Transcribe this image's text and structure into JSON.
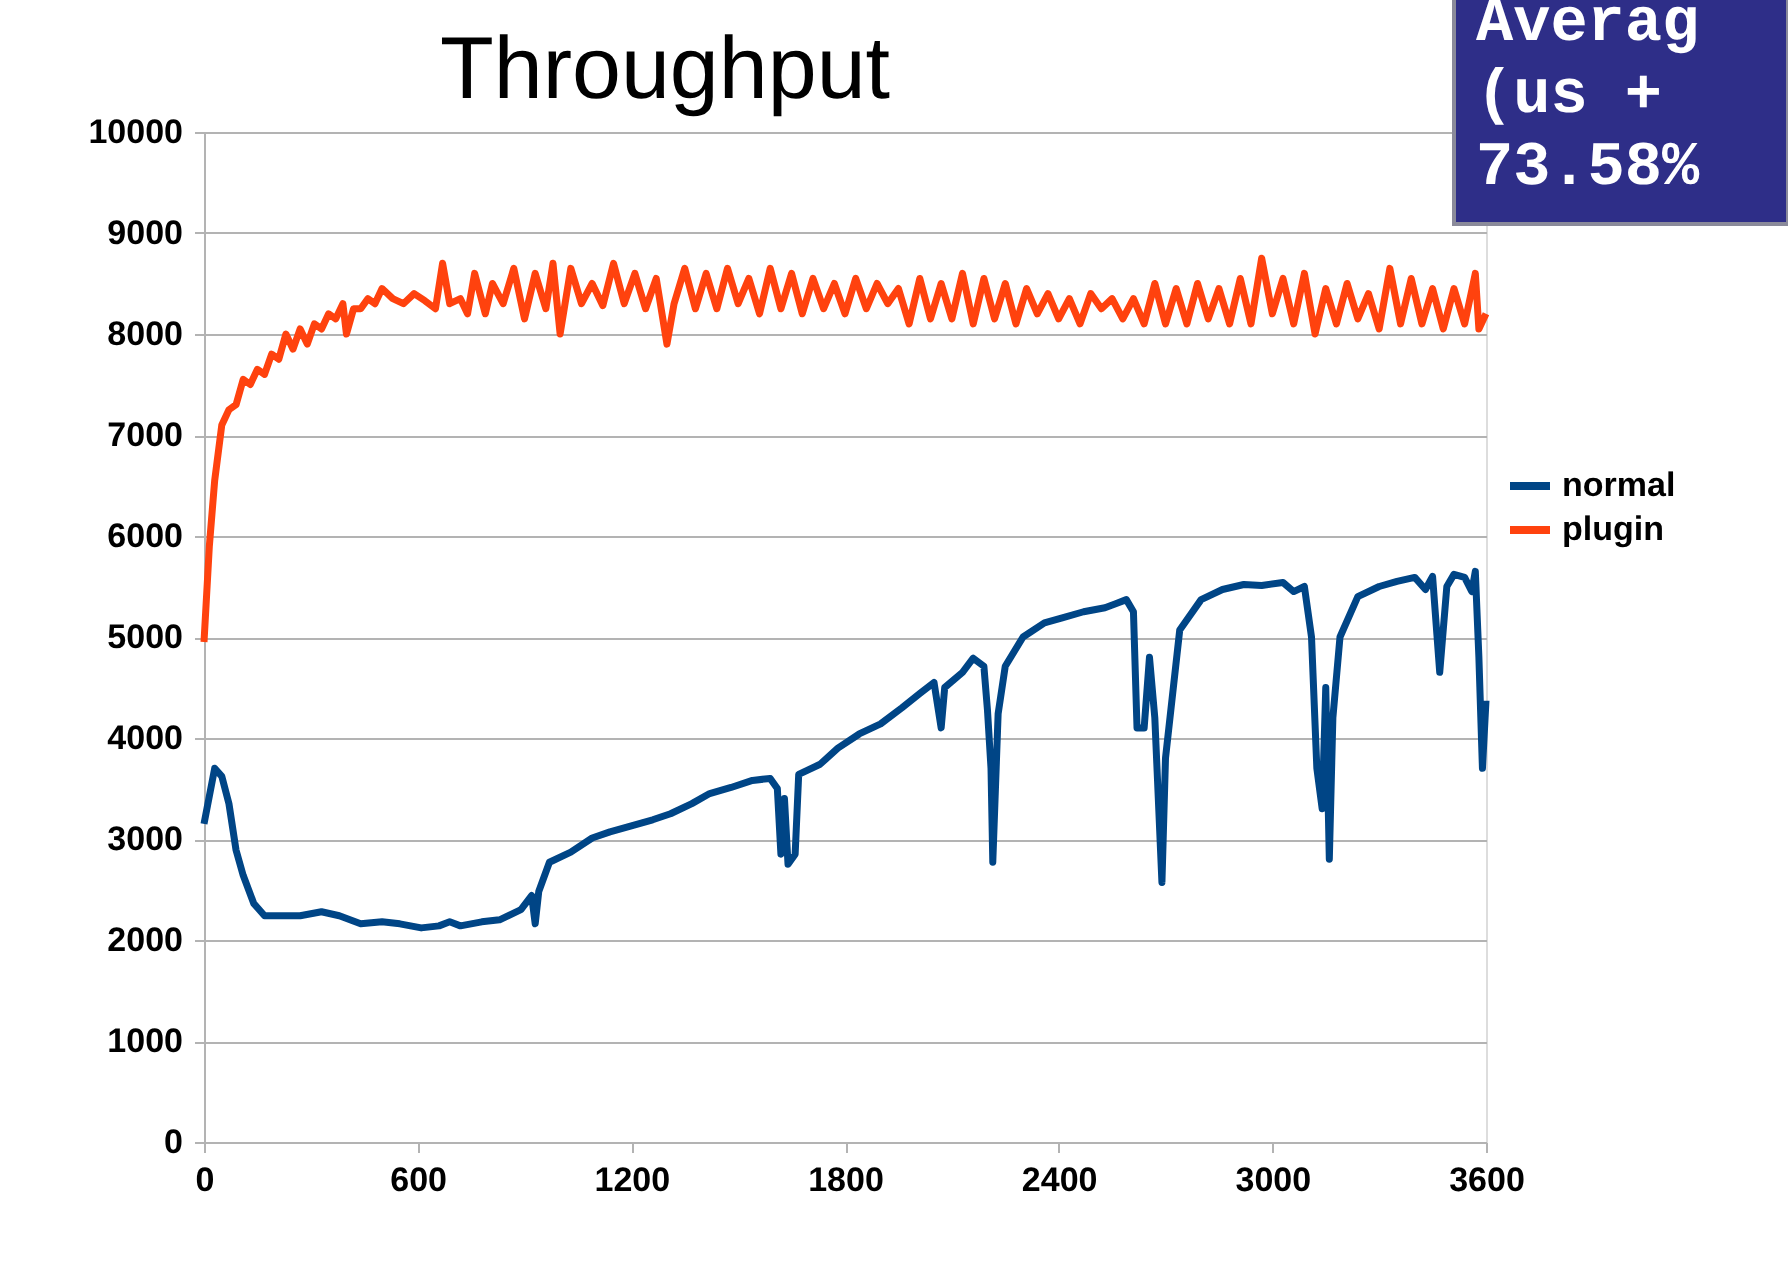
{
  "chart_data": {
    "type": "line",
    "title": "Throughput",
    "xlim": [
      0,
      3600
    ],
    "ylim": [
      0,
      10000
    ],
    "xticks": [
      0,
      600,
      1200,
      1800,
      2400,
      3000,
      3600
    ],
    "yticks": [
      0,
      1000,
      2000,
      3000,
      4000,
      5000,
      6000,
      7000,
      8000,
      9000,
      10000
    ],
    "grid": "y",
    "legend": "right",
    "annotations": [
      "Averag\n(us +\n73.58%"
    ],
    "series": [
      {
        "name": "normal",
        "color": "#004586",
        "x": [
          0,
          30,
          50,
          70,
          90,
          110,
          140,
          170,
          220,
          270,
          330,
          380,
          440,
          500,
          550,
          610,
          660,
          690,
          720,
          780,
          830,
          890,
          920,
          930,
          940,
          970,
          1030,
          1090,
          1140,
          1200,
          1260,
          1310,
          1370,
          1420,
          1480,
          1540,
          1590,
          1610,
          1620,
          1630,
          1640,
          1660,
          1670,
          1730,
          1780,
          1840,
          1900,
          1960,
          2010,
          2050,
          2070,
          2080,
          2130,
          2160,
          2190,
          2200,
          2210,
          2215,
          2230,
          2250,
          2300,
          2360,
          2410,
          2470,
          2530,
          2560,
          2590,
          2610,
          2620,
          2640,
          2655,
          2670,
          2690,
          2700,
          2740,
          2800,
          2860,
          2920,
          2970,
          3030,
          3060,
          3090,
          3110,
          3125,
          3140,
          3150,
          3160,
          3170,
          3190,
          3240,
          3300,
          3350,
          3400,
          3430,
          3450,
          3470,
          3490,
          3510,
          3540,
          3560,
          3570,
          3580,
          3590,
          3600
        ],
        "values": [
          3150,
          3700,
          3620,
          3350,
          2890,
          2640,
          2360,
          2240,
          2240,
          2240,
          2280,
          2240,
          2160,
          2180,
          2160,
          2120,
          2140,
          2180,
          2140,
          2180,
          2200,
          2300,
          2440,
          2160,
          2480,
          2770,
          2870,
          3010,
          3070,
          3130,
          3190,
          3250,
          3350,
          3450,
          3510,
          3580,
          3600,
          3500,
          2850,
          3400,
          2750,
          2850,
          3640,
          3740,
          3900,
          4040,
          4140,
          4300,
          4440,
          4550,
          4100,
          4500,
          4650,
          4790,
          4710,
          4280,
          3700,
          2770,
          4240,
          4710,
          5000,
          5140,
          5190,
          5250,
          5290,
          5330,
          5370,
          5250,
          4100,
          4100,
          4800,
          4200,
          2570,
          3800,
          5070,
          5370,
          5470,
          5520,
          5510,
          5540,
          5450,
          5500,
          5000,
          3700,
          3300,
          4500,
          2800,
          4200,
          5000,
          5400,
          5500,
          5550,
          5590,
          5470,
          5600,
          4650,
          5500,
          5620,
          5590,
          5450,
          5650,
          4800,
          3700,
          4370
        ]
      },
      {
        "name": "plugin",
        "color": "#ff420e",
        "x": [
          0,
          15,
          30,
          50,
          70,
          90,
          110,
          130,
          150,
          170,
          190,
          210,
          230,
          250,
          270,
          290,
          310,
          330,
          350,
          370,
          390,
          400,
          420,
          440,
          460,
          480,
          500,
          530,
          560,
          590,
          620,
          650,
          670,
          690,
          720,
          740,
          760,
          790,
          810,
          840,
          870,
          900,
          930,
          960,
          980,
          1000,
          1030,
          1060,
          1090,
          1120,
          1150,
          1180,
          1210,
          1240,
          1270,
          1300,
          1320,
          1350,
          1380,
          1410,
          1440,
          1470,
          1500,
          1530,
          1560,
          1590,
          1620,
          1650,
          1680,
          1710,
          1740,
          1770,
          1800,
          1830,
          1860,
          1890,
          1920,
          1950,
          1980,
          2010,
          2040,
          2070,
          2100,
          2130,
          2160,
          2190,
          2220,
          2250,
          2280,
          2310,
          2340,
          2370,
          2400,
          2430,
          2460,
          2490,
          2520,
          2550,
          2580,
          2610,
          2640,
          2670,
          2700,
          2730,
          2760,
          2790,
          2820,
          2850,
          2880,
          2910,
          2940,
          2970,
          3000,
          3030,
          3060,
          3090,
          3120,
          3150,
          3180,
          3210,
          3240,
          3270,
          3300,
          3330,
          3360,
          3390,
          3420,
          3450,
          3480,
          3510,
          3540,
          3570,
          3580,
          3600
        ],
        "values": [
          4950,
          5900,
          6550,
          7100,
          7250,
          7300,
          7550,
          7500,
          7650,
          7600,
          7800,
          7750,
          8000,
          7850,
          8050,
          7900,
          8100,
          8050,
          8200,
          8150,
          8300,
          8000,
          8250,
          8250,
          8350,
          8300,
          8450,
          8350,
          8300,
          8400,
          8330,
          8250,
          8700,
          8300,
          8350,
          8200,
          8600,
          8200,
          8500,
          8300,
          8650,
          8150,
          8600,
          8250,
          8700,
          8000,
          8650,
          8300,
          8500,
          8280,
          8700,
          8300,
          8600,
          8250,
          8550,
          7900,
          8300,
          8650,
          8250,
          8600,
          8250,
          8650,
          8300,
          8550,
          8200,
          8650,
          8250,
          8600,
          8200,
          8550,
          8250,
          8500,
          8200,
          8550,
          8250,
          8500,
          8300,
          8450,
          8100,
          8550,
          8150,
          8500,
          8150,
          8600,
          8100,
          8550,
          8150,
          8500,
          8100,
          8450,
          8200,
          8400,
          8150,
          8350,
          8100,
          8400,
          8250,
          8350,
          8150,
          8350,
          8100,
          8500,
          8100,
          8450,
          8100,
          8500,
          8150,
          8450,
          8100,
          8550,
          8100,
          8750,
          8200,
          8550,
          8100,
          8600,
          8000,
          8450,
          8100,
          8500,
          8150,
          8400,
          8050,
          8650,
          8100,
          8550,
          8100,
          8450,
          8050,
          8450,
          8100,
          8600,
          8050,
          8200
        ]
      }
    ]
  }
}
